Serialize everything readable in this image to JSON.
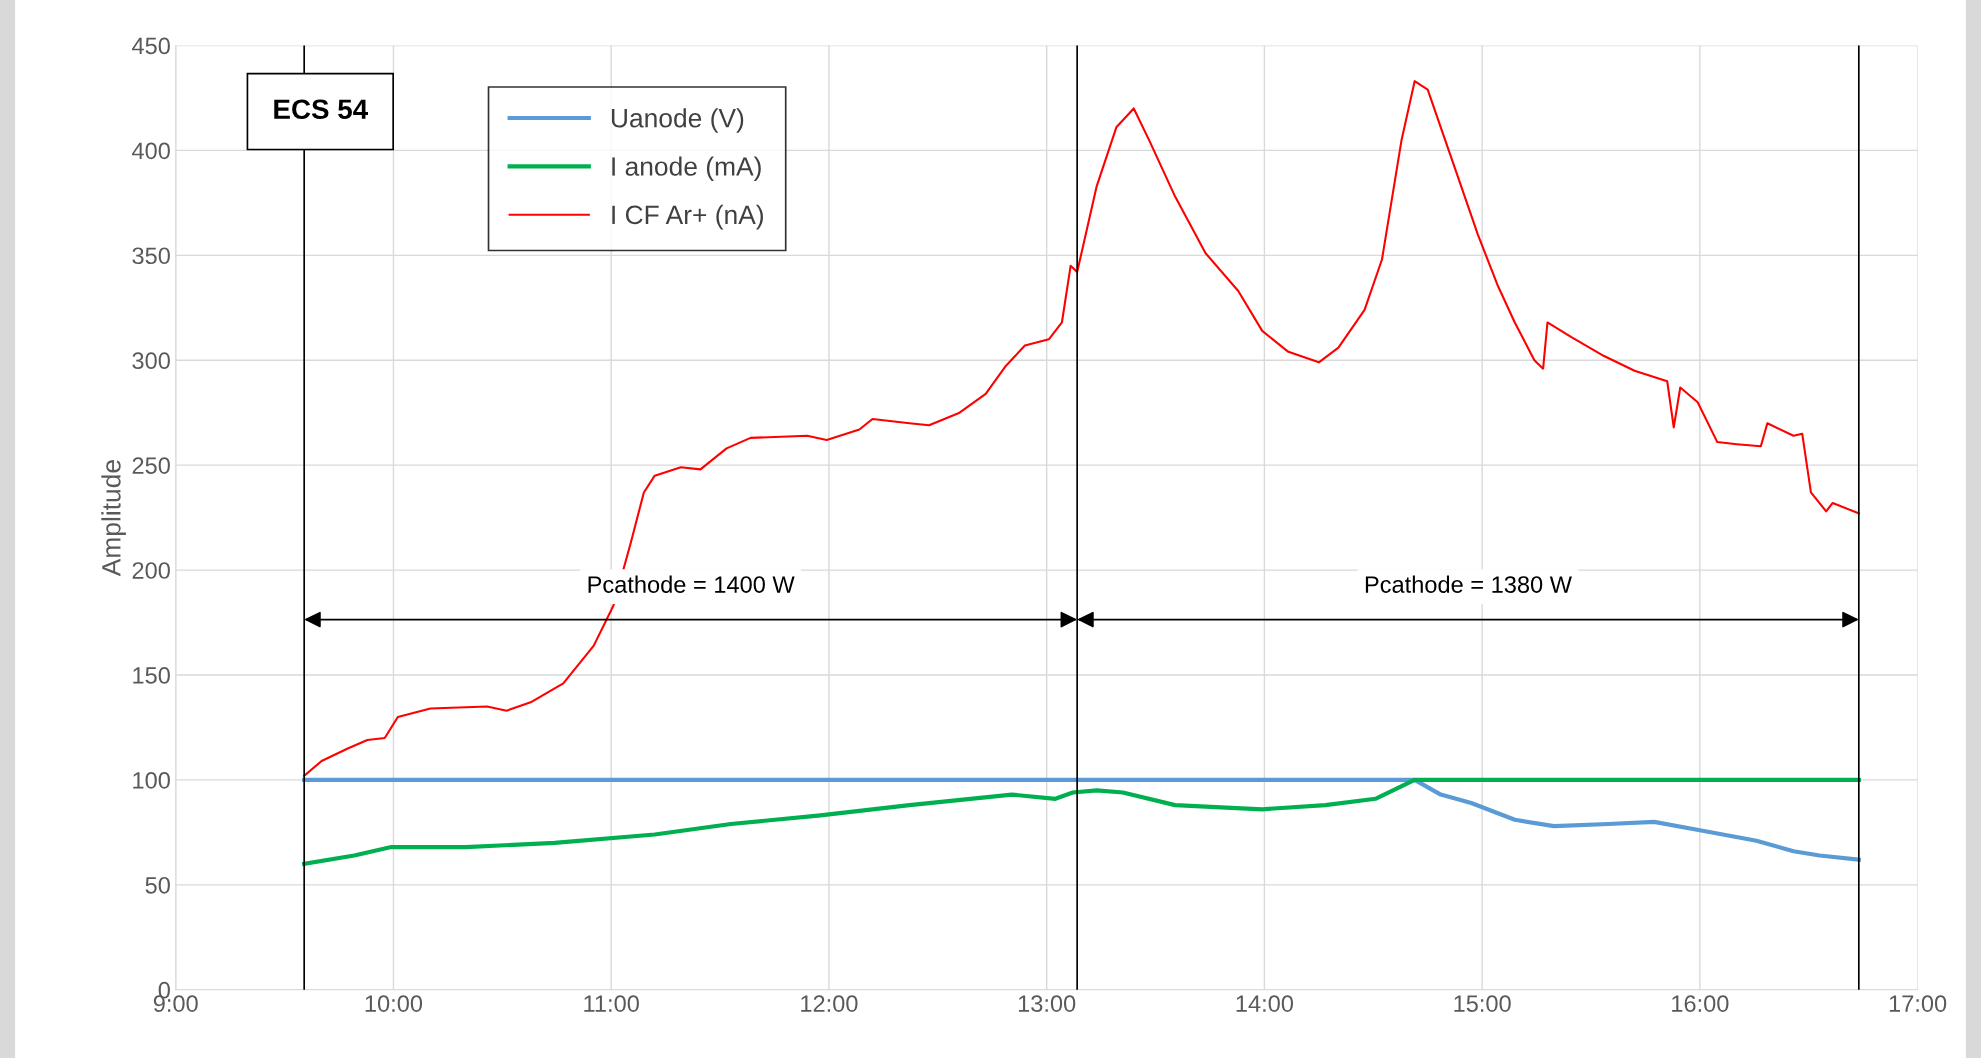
{
  "chart_data": {
    "type": "line",
    "ylabel": "Amplitude",
    "xlim": [
      9,
      17
    ],
    "ylim": [
      0,
      450
    ],
    "xticks": [
      {
        "value": 9,
        "label": "9:00"
      },
      {
        "value": 10,
        "label": "10:00"
      },
      {
        "value": 11,
        "label": "11:00"
      },
      {
        "value": 12,
        "label": "12:00"
      },
      {
        "value": 13,
        "label": "13:00"
      },
      {
        "value": 14,
        "label": "14:00"
      },
      {
        "value": 15,
        "label": "15:00"
      },
      {
        "value": 16,
        "label": "16:00"
      },
      {
        "value": 17,
        "label": "17:00"
      }
    ],
    "yticks": [
      0,
      50,
      100,
      150,
      200,
      250,
      300,
      350,
      400,
      450
    ],
    "grid": true,
    "legend": "top left",
    "marker": "none",
    "line_style": "solid",
    "series": [
      {
        "name": "Uanode (V)",
        "color": "#5b9bd5",
        "x": [
          9.59,
          14.69,
          14.81,
          14.95,
          15.15,
          15.33,
          15.58,
          15.79,
          16.0,
          16.26,
          16.43,
          16.55,
          16.73
        ],
        "values": [
          100,
          100,
          93,
          89,
          81,
          78,
          79,
          80,
          76,
          71,
          66,
          64,
          62
        ]
      },
      {
        "name": "I anode (mA)",
        "color": "#00b050",
        "x": [
          9.59,
          9.82,
          9.99,
          10.33,
          10.74,
          11.2,
          11.55,
          11.95,
          12.37,
          12.84,
          13.04,
          13.12,
          13.23,
          13.35,
          13.59,
          13.99,
          14.28,
          14.51,
          14.69,
          16.73
        ],
        "values": [
          60,
          64,
          68,
          68,
          70,
          74,
          79,
          83,
          88,
          93,
          91,
          94,
          95,
          94,
          88,
          86,
          88,
          91,
          100,
          100
        ]
      },
      {
        "name": "I CF Ar+ (nA)",
        "color": "#ff0000",
        "x": [
          9.59,
          9.67,
          9.79,
          9.88,
          9.96,
          10.02,
          10.17,
          10.43,
          10.52,
          10.63,
          10.78,
          10.92,
          11.01,
          11.09,
          11.15,
          11.2,
          11.32,
          11.41,
          11.53,
          11.64,
          11.9,
          11.99,
          12.14,
          12.2,
          12.37,
          12.46,
          12.6,
          12.72,
          12.81,
          12.9,
          13.01,
          13.07,
          13.11,
          13.14,
          13.23,
          13.32,
          13.4,
          13.47,
          13.59,
          13.73,
          13.88,
          13.99,
          14.11,
          14.25,
          14.34,
          14.46,
          14.54,
          14.63,
          14.69,
          14.75,
          14.81,
          14.89,
          14.98,
          15.07,
          15.15,
          15.24,
          15.28,
          15.3,
          15.41,
          15.56,
          15.7,
          15.85,
          15.88,
          15.91,
          15.99,
          16.08,
          16.17,
          16.28,
          16.31,
          16.43,
          16.47,
          16.51,
          16.58,
          16.61,
          16.73
        ],
        "values": [
          102,
          109,
          115,
          119,
          120,
          130,
          134,
          135,
          133,
          137,
          146,
          164,
          183,
          213,
          237,
          245,
          249,
          248,
          258,
          263,
          264,
          262,
          267,
          272,
          270,
          269,
          275,
          284,
          297,
          307,
          310,
          318,
          345,
          342,
          383,
          411,
          420,
          405,
          378,
          351,
          333,
          314,
          304,
          299,
          306,
          324,
          348,
          405,
          433,
          429,
          411,
          387,
          360,
          336,
          318,
          300,
          296,
          318,
          311,
          302,
          295,
          290,
          268,
          287,
          280,
          261,
          260,
          259,
          270,
          264,
          265,
          237,
          228,
          232,
          227
        ]
      }
    ],
    "ref_lines": [
      {
        "axis": "x",
        "value": 9.59,
        "color": "#000000"
      },
      {
        "axis": "x",
        "value": 13.14,
        "color": "#000000"
      },
      {
        "axis": "x",
        "value": 16.73,
        "color": "#000000"
      }
    ],
    "annotations": [
      "ECS 54",
      "Pcathode = 1400 W",
      "Pcathode = 1380 W"
    ]
  }
}
